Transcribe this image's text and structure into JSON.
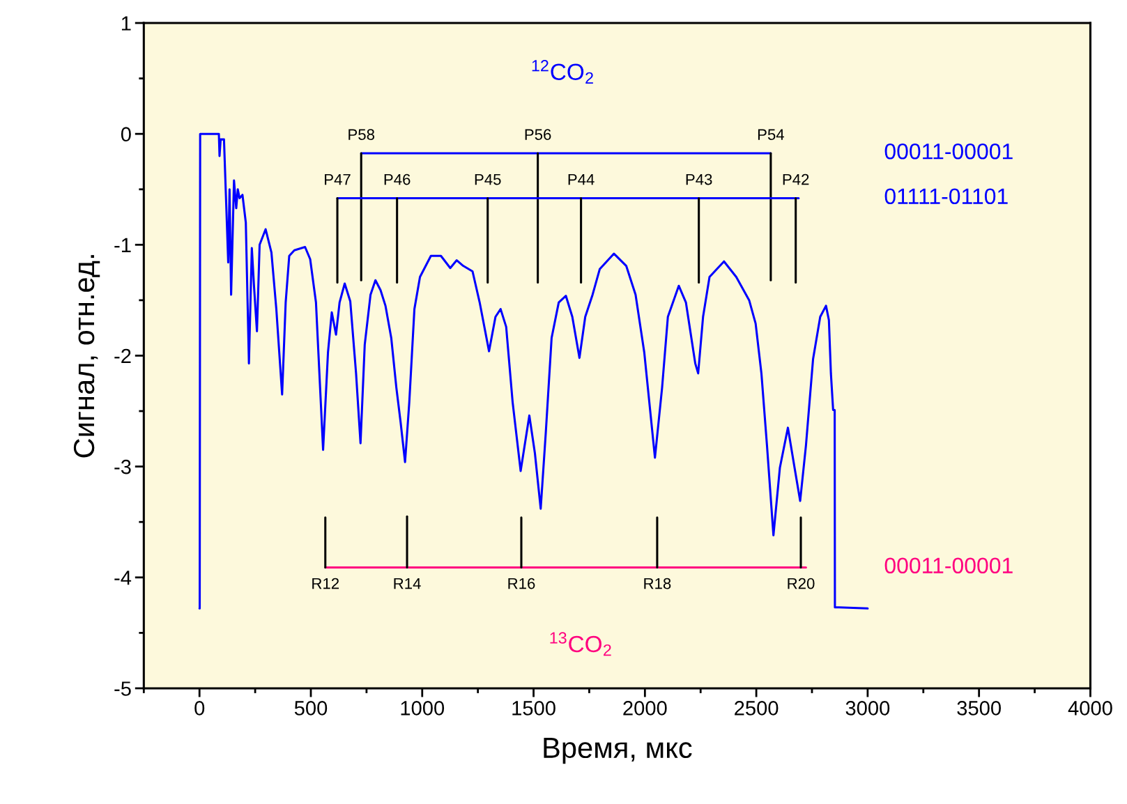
{
  "chart_data": {
    "type": "line",
    "xlabel": "Время, мкс",
    "ylabel": "Сигнал, отн.ед.",
    "xlim": [
      -250,
      4000
    ],
    "xticks": [
      0,
      500,
      1000,
      1500,
      2000,
      2500,
      3000,
      3500,
      4000
    ],
    "ylim": [
      -5,
      1
    ],
    "yticks": [
      -5,
      -4,
      -3,
      -2,
      -1,
      0,
      1
    ],
    "grid": false,
    "legend": false,
    "marker": "none",
    "line_style": "solid",
    "series": [
      {
        "color": "#0000ff",
        "x": [
          0,
          1,
          3,
          87,
          90,
          95,
          110,
          129,
          135,
          142,
          155,
          165,
          172,
          180,
          193,
          208,
          222,
          235,
          245,
          258,
          270,
          297,
          323,
          345,
          371,
          387,
          403,
          426,
          474,
          497,
          523,
          555,
          577,
          594,
          613,
          629,
          652,
          677,
          703,
          723,
          742,
          768,
          790,
          813,
          835,
          861,
          884,
          903,
          923,
          942,
          965,
          990,
          1039,
          1084,
          1126,
          1155,
          1184,
          1226,
          1258,
          1300,
          1329,
          1352,
          1377,
          1406,
          1442,
          1481,
          1506,
          1532,
          1555,
          1581,
          1613,
          1645,
          1674,
          1706,
          1732,
          1765,
          1797,
          1861,
          1916,
          1958,
          1997,
          2045,
          2077,
          2103,
          2152,
          2184,
          2226,
          2239,
          2261,
          2290,
          2355,
          2410,
          2468,
          2497,
          2523,
          2548,
          2577,
          2606,
          2642,
          2671,
          2697,
          2723,
          2755,
          2787,
          2813,
          2826,
          2835,
          2845,
          2852,
          2853,
          2871,
          3000
        ],
        "values": [
          -4.28,
          -4.28,
          0,
          0,
          -0.2,
          -0.05,
          -0.05,
          -1.16,
          -0.5,
          -1.45,
          -0.42,
          -0.67,
          -0.5,
          -0.58,
          -0.55,
          -0.8,
          -2.07,
          -1.03,
          -1.38,
          -1.78,
          -1.0,
          -0.86,
          -1.07,
          -1.58,
          -2.35,
          -1.52,
          -1.1,
          -1.05,
          -1.02,
          -1.13,
          -1.52,
          -2.85,
          -1.97,
          -1.61,
          -1.81,
          -1.52,
          -1.35,
          -1.51,
          -2.16,
          -2.79,
          -1.9,
          -1.45,
          -1.32,
          -1.41,
          -1.55,
          -1.84,
          -2.29,
          -2.6,
          -2.96,
          -2.42,
          -1.58,
          -1.29,
          -1.1,
          -1.1,
          -1.21,
          -1.14,
          -1.19,
          -1.24,
          -1.52,
          -1.96,
          -1.65,
          -1.58,
          -1.74,
          -2.42,
          -3.04,
          -2.54,
          -2.88,
          -3.38,
          -2.69,
          -1.84,
          -1.52,
          -1.46,
          -1.65,
          -2.02,
          -1.65,
          -1.45,
          -1.22,
          -1.08,
          -1.19,
          -1.45,
          -1.97,
          -2.92,
          -2.29,
          -1.65,
          -1.37,
          -1.52,
          -2.07,
          -2.16,
          -1.65,
          -1.29,
          -1.15,
          -1.29,
          -1.5,
          -1.71,
          -2.16,
          -2.81,
          -3.62,
          -3.01,
          -2.65,
          -3.0,
          -3.31,
          -2.81,
          -2.03,
          -1.65,
          -1.55,
          -1.68,
          -2.16,
          -2.49,
          -2.49,
          -4.27,
          -4.27,
          -4.28
        ]
      },
      {
        "name": "00011-00001",
        "color": "#0000ff",
        "x": [
          726,
          2565
        ],
        "values": [
          -0.175,
          -0.175
        ]
      },
      {
        "color": "#000000",
        "x": [
          726,
          726
        ],
        "values": [
          -1.32,
          -0.175
        ]
      },
      {
        "color": "#000000",
        "x": [
          1519,
          1519
        ],
        "values": [
          -1.34,
          -0.175
        ]
      },
      {
        "color": "#000000",
        "x": [
          2565,
          2565
        ],
        "values": [
          -1.32,
          -0.175
        ]
      },
      {
        "name": "01111-01101",
        "color": "#0000ff",
        "x": [
          619,
          2690
        ],
        "values": [
          -0.58,
          -0.58
        ]
      },
      {
        "color": "#000000",
        "x": [
          619,
          619
        ],
        "values": [
          -1.34,
          -0.58
        ]
      },
      {
        "color": "#000000",
        "x": [
          887,
          887
        ],
        "values": [
          -1.34,
          -0.58
        ]
      },
      {
        "color": "#000000",
        "x": [
          1294,
          1294
        ],
        "values": [
          -1.34,
          -0.58
        ]
      },
      {
        "color": "#000000",
        "x": [
          1713,
          1713
        ],
        "values": [
          -1.34,
          -0.58
        ]
      },
      {
        "color": "#000000",
        "x": [
          2242,
          2242
        ],
        "values": [
          -1.34,
          -0.58
        ]
      },
      {
        "color": "#000000",
        "x": [
          2677,
          2677
        ],
        "values": [
          -1.34,
          -0.58
        ]
      },
      {
        "name": "00011-00001",
        "color": "#ff007f",
        "x": [
          565,
          2723
        ],
        "values": [
          -3.91,
          -3.91
        ]
      },
      {
        "color": "#000000",
        "x": [
          565,
          565
        ],
        "values": [
          -3.46,
          -3.91
        ]
      },
      {
        "color": "#000000",
        "x": [
          932,
          932
        ],
        "values": [
          -3.45,
          -3.91
        ]
      },
      {
        "color": "#000000",
        "x": [
          1445,
          1445
        ],
        "values": [
          -3.46,
          -3.91
        ]
      },
      {
        "color": "#000000",
        "x": [
          2055,
          2055
        ],
        "values": [
          -3.46,
          -3.91
        ]
      },
      {
        "color": "#000000",
        "x": [
          2700,
          2700
        ],
        "values": [
          -3.46,
          -3.91
        ]
      }
    ],
    "annotations": [
      "$^{12}$CO$_{2}$",
      "$^{13}$CO$_{2}$",
      {
        "text": "P58",
        "x": 726,
        "y": -0.175
      },
      {
        "text": "P56",
        "x": 1519,
        "y": -0.175
      },
      {
        "text": "P54",
        "x": 2565,
        "y": -0.175
      },
      {
        "text": "P47",
        "x": 619,
        "y": -0.58
      },
      {
        "text": "P46",
        "x": 887,
        "y": -0.58
      },
      {
        "text": "P45",
        "x": 1294,
        "y": -0.58
      },
      {
        "text": "P44",
        "x": 1713,
        "y": -0.58
      },
      {
        "text": "P43",
        "x": 2242,
        "y": -0.58
      },
      {
        "text": "P42",
        "x": 2677,
        "y": -0.58
      },
      {
        "text": "R12",
        "x": 565,
        "y": -3.91
      },
      {
        "text": "R14",
        "x": 932,
        "y": -3.91
      },
      {
        "text": "R16",
        "x": 1445,
        "y": -3.91
      },
      {
        "text": "R18",
        "x": 2055,
        "y": -3.91
      },
      {
        "text": "R20",
        "x": 2700,
        "y": -3.91
      }
    ]
  }
}
